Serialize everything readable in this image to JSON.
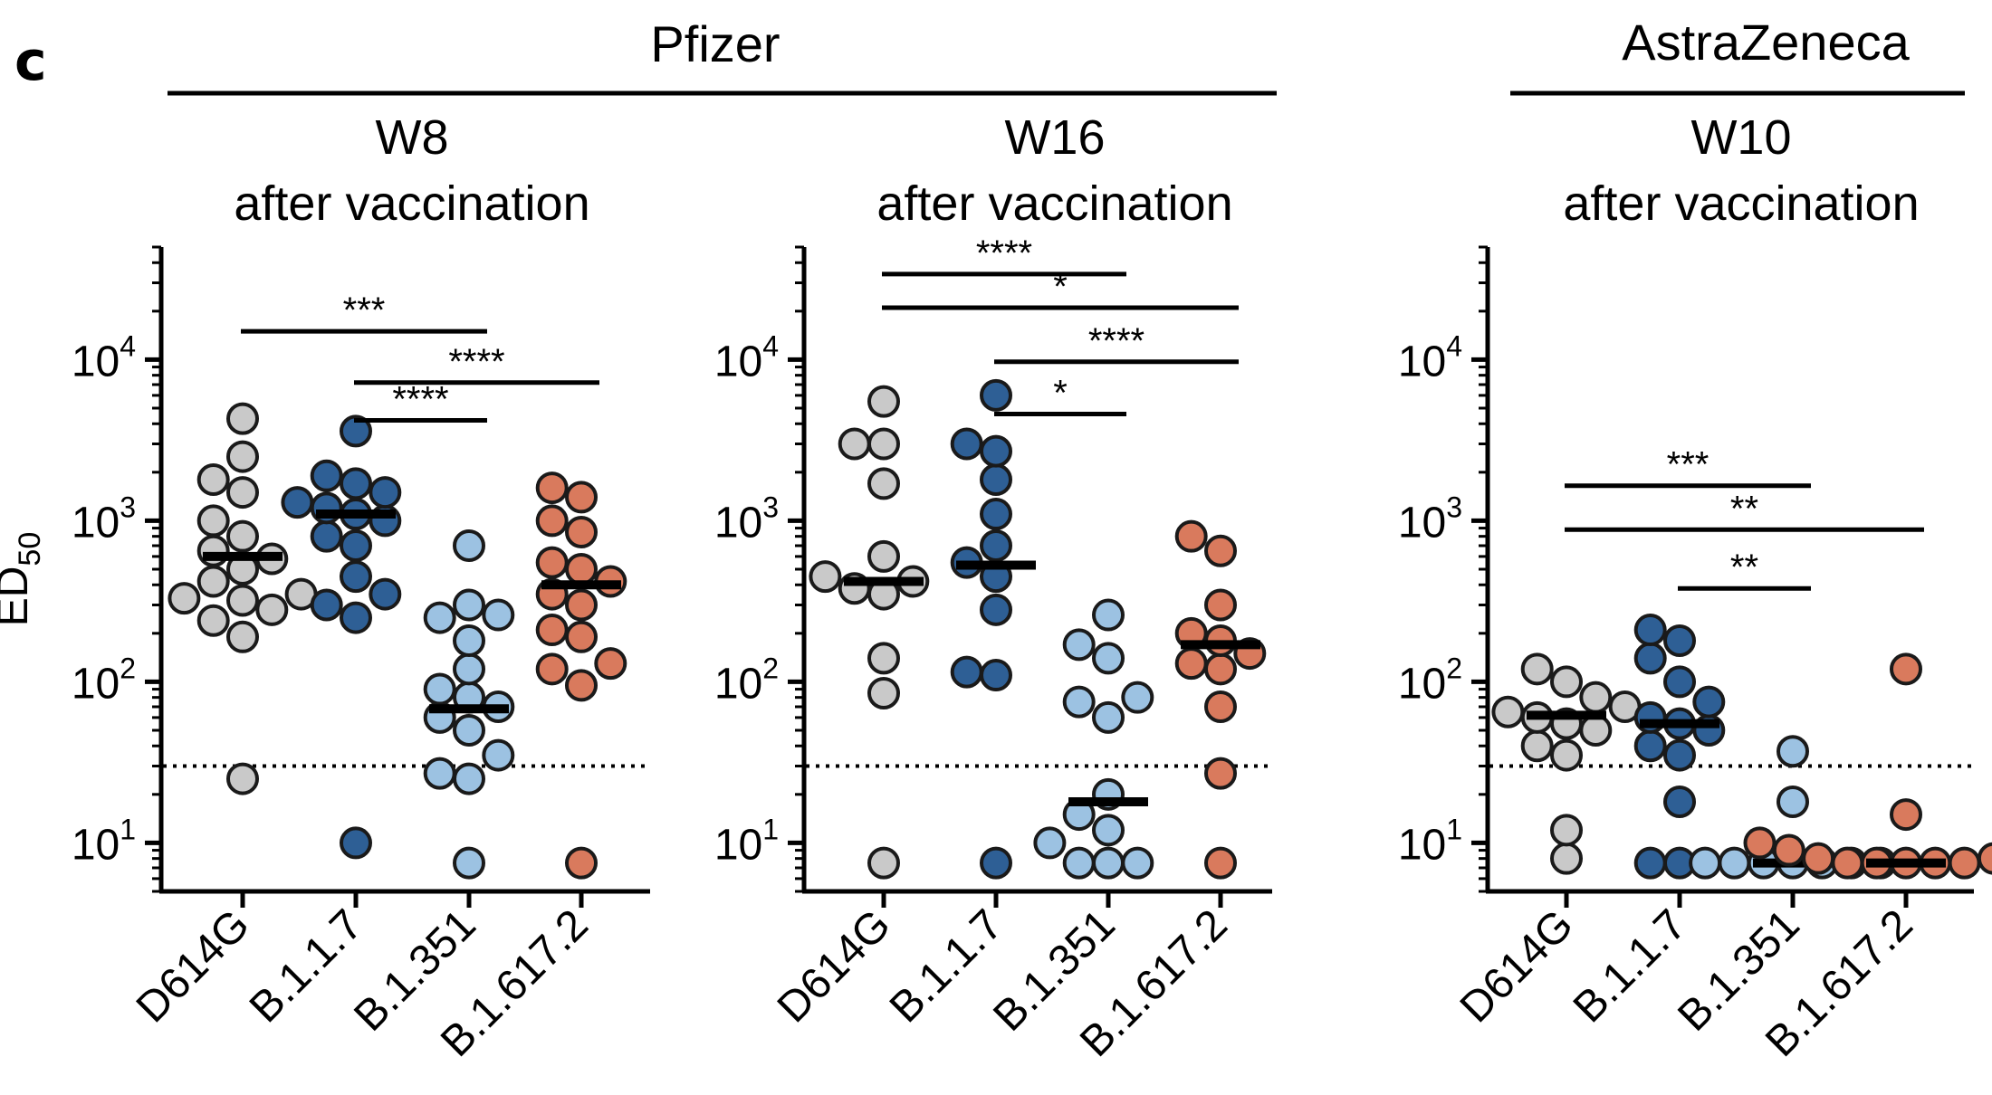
{
  "figure": {
    "panel_letter": "c",
    "groups": [
      {
        "label": "Pfizer"
      },
      {
        "label": "AstraZeneca"
      }
    ]
  },
  "chart_data": [
    {
      "type": "scatter",
      "title_line1": "W8",
      "title_line2": "after vaccination",
      "ylabel": "ED",
      "ylabel_sub": "50",
      "yscale": "log",
      "ylim": [
        5,
        50000
      ],
      "yticks": [
        {
          "base": "10",
          "exp": "1"
        },
        {
          "base": "10",
          "exp": "2"
        },
        {
          "base": "10",
          "exp": "3"
        },
        {
          "base": "10",
          "exp": "4"
        }
      ],
      "threshold": 30,
      "categories": [
        "D614G",
        "B.1.1.7",
        "B.1.351",
        "B.1.617.2"
      ],
      "colors": [
        "#c9c9c9",
        "#2e5f95",
        "#9cc2e2",
        "#d97a5d"
      ],
      "series": [
        {
          "points": [
            25,
            190,
            240,
            280,
            320,
            330,
            350,
            420,
            500,
            580,
            650,
            800,
            1000,
            1500,
            1800,
            2500,
            4300
          ],
          "median": 600
        },
        {
          "points": [
            10,
            250,
            300,
            350,
            450,
            700,
            800,
            1000,
            1100,
            1200,
            1300,
            1500,
            1700,
            1900,
            3600
          ],
          "median": 1100
        },
        {
          "points": [
            7.5,
            25,
            27,
            35,
            50,
            60,
            70,
            80,
            90,
            120,
            180,
            250,
            260,
            300,
            700
          ],
          "median": 68
        },
        {
          "points": [
            7.5,
            95,
            120,
            130,
            190,
            210,
            300,
            350,
            420,
            500,
            550,
            850,
            1000,
            1400,
            1600
          ],
          "median": 400
        }
      ],
      "significance": [
        {
          "from": 0,
          "to": 2,
          "label": "***",
          "y": 15000
        },
        {
          "from": 1,
          "to": 3,
          "label": "****",
          "y": 7200
        },
        {
          "from": 1,
          "to": 2,
          "label": "****",
          "y": 4200
        }
      ]
    },
    {
      "type": "scatter",
      "title_line1": "W16",
      "title_line2": "after vaccination",
      "yscale": "log",
      "ylim": [
        5,
        50000
      ],
      "yticks": [
        {
          "base": "10",
          "exp": "1"
        },
        {
          "base": "10",
          "exp": "2"
        },
        {
          "base": "10",
          "exp": "3"
        },
        {
          "base": "10",
          "exp": "4"
        }
      ],
      "threshold": 30,
      "categories": [
        "D614G",
        "B.1.1.7",
        "B.1.351",
        "B.1.617.2"
      ],
      "colors": [
        "#c9c9c9",
        "#2e5f95",
        "#9cc2e2",
        "#d97a5d"
      ],
      "series": [
        {
          "points": [
            7.5,
            85,
            140,
            350,
            380,
            420,
            450,
            600,
            1700,
            3000,
            3000,
            5500
          ],
          "median": 420
        },
        {
          "points": [
            7.5,
            110,
            115,
            280,
            450,
            550,
            700,
            1100,
            1800,
            2700,
            3000,
            6000
          ],
          "median": 530
        },
        {
          "points": [
            7.5,
            7.5,
            7.5,
            10,
            12,
            15,
            20,
            60,
            75,
            80,
            140,
            170,
            260
          ],
          "median": 18
        },
        {
          "points": [
            7.5,
            27,
            70,
            120,
            130,
            150,
            180,
            200,
            300,
            650,
            800
          ],
          "median": 170
        }
      ],
      "significance": [
        {
          "from": 0,
          "to": 2,
          "label": "****",
          "y": 34000
        },
        {
          "from": 0,
          "to": 3,
          "label": "*",
          "y": 21000
        },
        {
          "from": 1,
          "to": 3,
          "label": "****",
          "y": 9700
        },
        {
          "from": 1,
          "to": 2,
          "label": "*",
          "y": 4600
        }
      ]
    },
    {
      "type": "scatter",
      "title_line1": "W10",
      "title_line2": "after vaccination",
      "yscale": "log",
      "ylim": [
        5,
        50000
      ],
      "yticks": [
        {
          "base": "10",
          "exp": "1"
        },
        {
          "base": "10",
          "exp": "2"
        },
        {
          "base": "10",
          "exp": "3"
        },
        {
          "base": "10",
          "exp": "4"
        }
      ],
      "threshold": 30,
      "categories": [
        "D614G",
        "B.1.1.7",
        "B.1.351",
        "B.1.617.2"
      ],
      "colors": [
        "#c9c9c9",
        "#2e5f95",
        "#9cc2e2",
        "#d97a5d"
      ],
      "series": [
        {
          "points": [
            8,
            12,
            35,
            40,
            50,
            55,
            60,
            65,
            70,
            80,
            100,
            120
          ],
          "median": 62
        },
        {
          "points": [
            7.5,
            7.5,
            18,
            35,
            40,
            50,
            55,
            60,
            75,
            100,
            140,
            180,
            210
          ],
          "median": 55
        },
        {
          "points": [
            7.5,
            7.5,
            7.5,
            7.5,
            7.5,
            7.5,
            7.5,
            18,
            37
          ],
          "median": 7.5
        },
        {
          "points": [
            7.5,
            7.5,
            7.5,
            7.5,
            7.5,
            8,
            8,
            9,
            10,
            10,
            15,
            120
          ],
          "median": 7.5
        }
      ],
      "significance": [
        {
          "from": 0,
          "to": 2,
          "label": "***",
          "y": 1650
        },
        {
          "from": 0,
          "to": 3,
          "label": "**",
          "y": 880
        },
        {
          "from": 1,
          "to": 2,
          "label": "**",
          "y": 380
        }
      ]
    }
  ]
}
